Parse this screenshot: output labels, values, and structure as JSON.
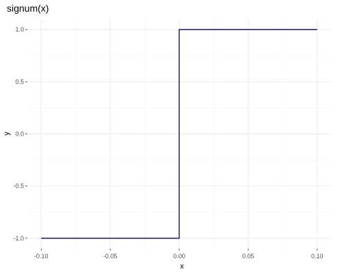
{
  "chart_data": {
    "type": "line",
    "title": "signum(x)",
    "xlabel": "x",
    "ylabel": "y",
    "xlim": [
      -0.1,
      0.1
    ],
    "ylim": [
      -1.0,
      1.0
    ],
    "x_ticks": [
      -0.1,
      -0.05,
      0.0,
      0.05,
      0.1
    ],
    "x_tick_labels": [
      "-0.10",
      "-0.05",
      "0.00",
      "0.05",
      "0.10"
    ],
    "y_ticks": [
      -1.0,
      -0.5,
      0.0,
      0.5,
      1.0
    ],
    "y_tick_labels": [
      "-1.0",
      "-0.5",
      "0.0",
      "0.5",
      "1.0"
    ],
    "grid": true,
    "legend": "none",
    "line_color": "#00004d",
    "grid_major_color": "#ebebeb",
    "grid_minor_color": "#f5f5f5",
    "series": [
      {
        "x": [
          -0.1,
          0.0,
          0.0,
          0.1
        ],
        "y": [
          -1.0,
          -1.0,
          1.0,
          1.0
        ]
      }
    ]
  }
}
